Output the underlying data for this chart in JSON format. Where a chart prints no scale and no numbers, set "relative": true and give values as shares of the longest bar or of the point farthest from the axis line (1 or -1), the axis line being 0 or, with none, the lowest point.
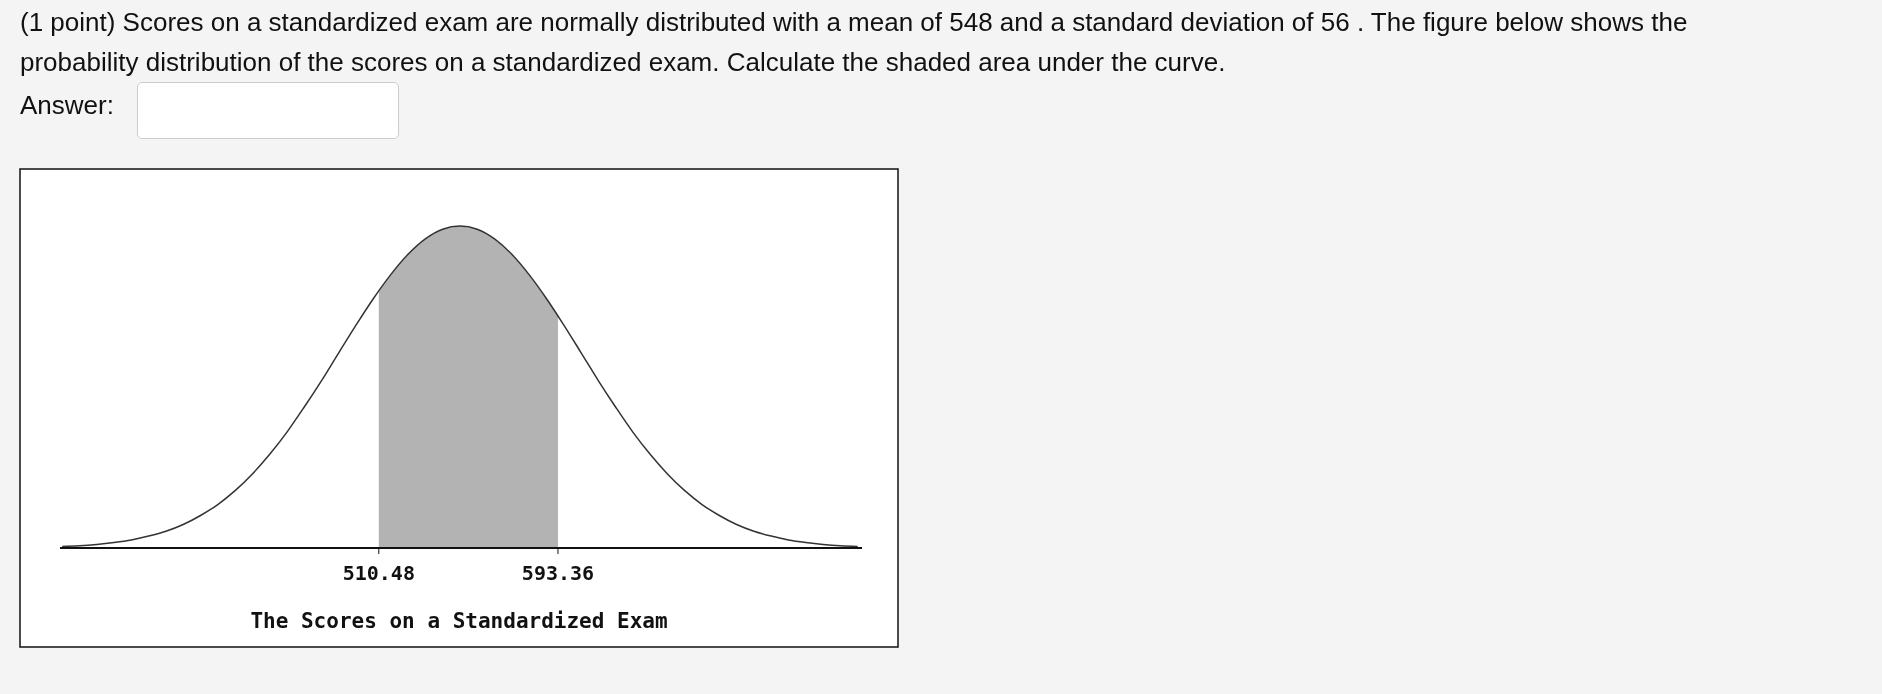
{
  "chart_data": {
    "type": "line",
    "title": "(1 point) Scores on a standardized exam are normally distributed with a mean of 548 and a standard deviation of 56 . The figure below shows the probability distribution of the scores on a standardized exam. Calculate the shaded area under the curve.",
    "annotations": [
      "Answer:"
    ],
    "xlabel": "The Scores on a Standardized Exam",
    "relative": true,
    "xlim": [
      363,
      734
    ],
    "xticks": [
      510.48,
      593.36
    ],
    "tick_labels": "x",
    "grid": false,
    "marker": "none",
    "series": [
      {
        "type": "area",
        "color": "#b3b3b3",
        "x": [
          510.48,
          516,
          524,
          532,
          540,
          548,
          556,
          564,
          572,
          580,
          588,
          593.36
        ],
        "values": [
          0.799,
          0.849,
          0.912,
          0.96,
          0.99,
          1,
          0.99,
          0.96,
          0.912,
          0.849,
          0.775,
          0.72
        ]
      },
      {
        "color": "#333333",
        "line_style": "solid",
        "x": [
          364,
          372,
          380,
          388,
          396,
          404,
          412,
          420,
          428,
          436,
          444,
          452,
          460,
          468,
          476,
          484,
          492,
          500,
          508,
          516,
          524,
          532,
          540,
          548,
          556,
          564,
          572,
          580,
          588,
          596,
          604,
          612,
          620,
          628,
          636,
          644,
          652,
          660,
          668,
          676,
          684,
          692,
          700,
          708,
          716,
          724,
          732
        ],
        "values": [
          0.005,
          0.007,
          0.011,
          0.017,
          0.025,
          0.037,
          0.052,
          0.073,
          0.101,
          0.135,
          0.178,
          0.23,
          0.291,
          0.36,
          0.438,
          0.52,
          0.607,
          0.693,
          0.775,
          0.849,
          0.912,
          0.96,
          0.99,
          1,
          0.99,
          0.96,
          0.912,
          0.849,
          0.775,
          0.693,
          0.607,
          0.52,
          0.438,
          0.36,
          0.291,
          0.23,
          0.178,
          0.135,
          0.101,
          0.073,
          0.052,
          0.037,
          0.025,
          0.017,
          0.011,
          0.007,
          0.005
        ]
      }
    ]
  }
}
